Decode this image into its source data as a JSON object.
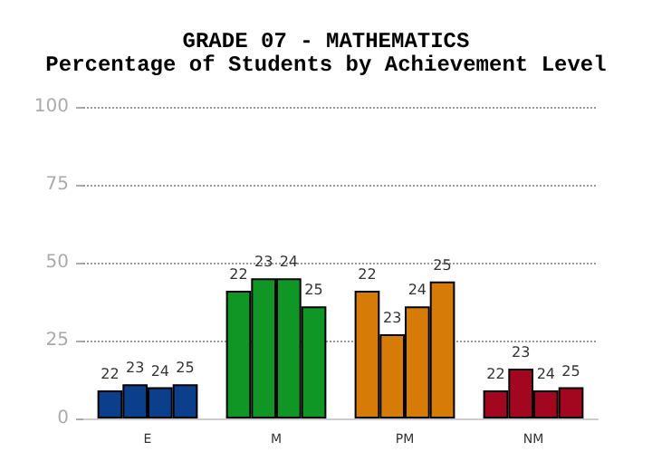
{
  "chart_data": {
    "type": "bar",
    "title": "GRADE 07 - MATHEMATICS",
    "subtitle": "Percentage of Students by Achievement Level",
    "categories": [
      "E",
      "M",
      "PM",
      "NM"
    ],
    "series": [
      {
        "name": "22",
        "colors": [
          "#0b3f8c",
          "#0f9624",
          "#d67b07",
          "#a3061f"
        ],
        "values": [
          9,
          41,
          41,
          9
        ]
      },
      {
        "name": "23",
        "colors": [
          "#0b3f8c",
          "#0f9624",
          "#d67b07",
          "#a3061f"
        ],
        "values": [
          11,
          45,
          27,
          16
        ]
      },
      {
        "name": "24",
        "colors": [
          "#0b3f8c",
          "#0f9624",
          "#d67b07",
          "#a3061f"
        ],
        "values": [
          10,
          45,
          36,
          9
        ]
      },
      {
        "name": "25",
        "colors": [
          "#0b3f8c",
          "#0f9624",
          "#d67b07",
          "#a3061f"
        ],
        "values": [
          11,
          36,
          44,
          10
        ]
      }
    ],
    "ylim": [
      0,
      100
    ],
    "yticks": [
      0,
      25,
      50,
      75,
      100
    ],
    "grid": "y",
    "legend": false
  }
}
